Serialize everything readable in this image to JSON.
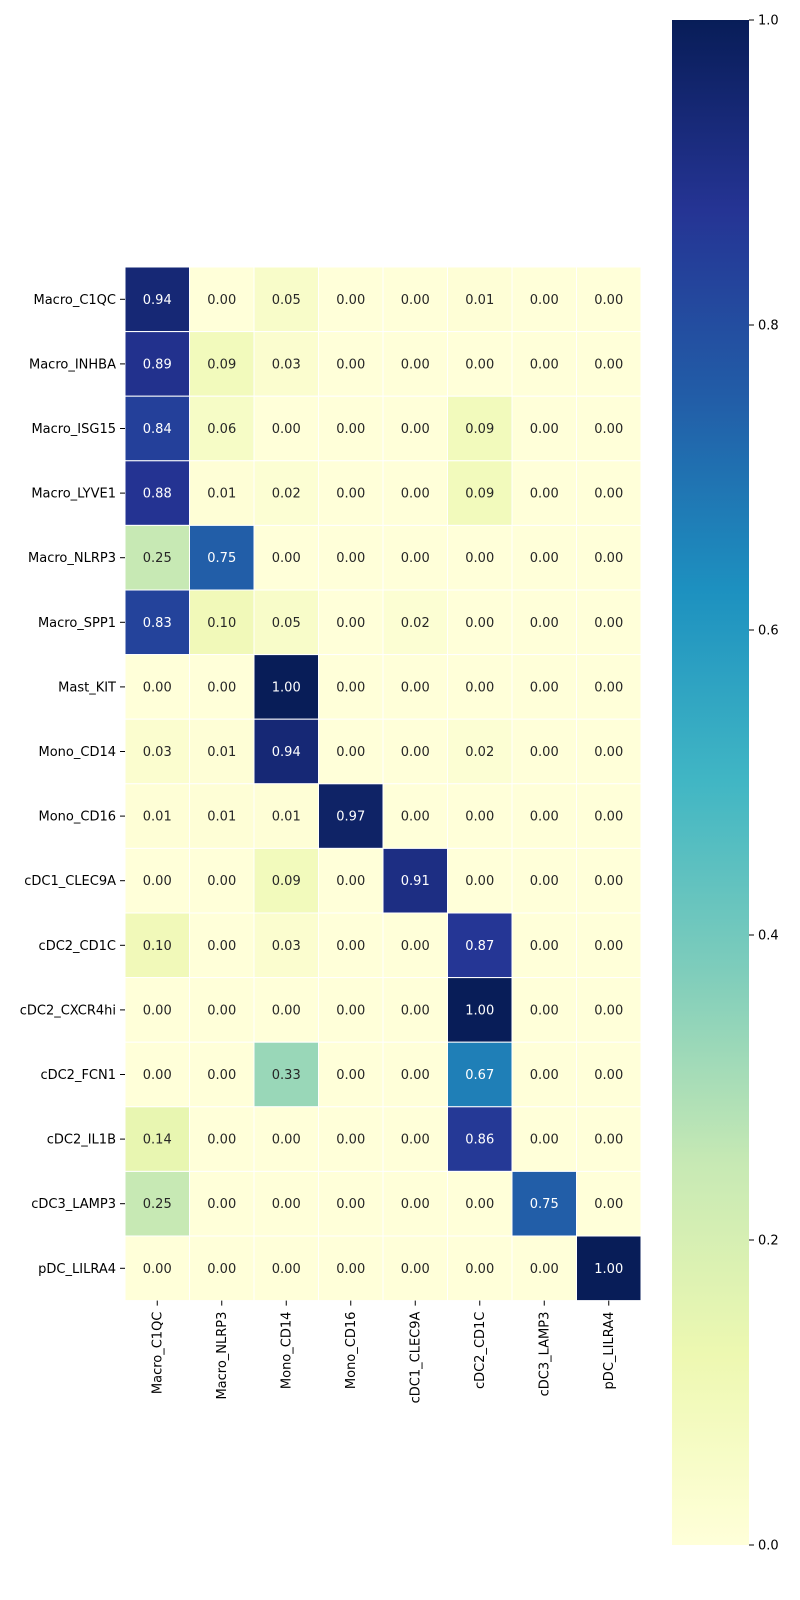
{
  "chart_data": {
    "type": "heatmap",
    "rows": [
      "Macro_C1QC",
      "Macro_INHBA",
      "Macro_ISG15",
      "Macro_LYVE1",
      "Macro_NLRP3",
      "Macro_SPP1",
      "Mast_KIT",
      "Mono_CD14",
      "Mono_CD16",
      "cDC1_CLEC9A",
      "cDC2_CD1C",
      "cDC2_CXCR4hi",
      "cDC2_FCN1",
      "cDC2_IL1B",
      "cDC3_LAMP3",
      "pDC_LILRA4"
    ],
    "columns": [
      "Macro_C1QC",
      "Macro_NLRP3",
      "Mono_CD14",
      "Mono_CD16",
      "cDC1_CLEC9A",
      "cDC2_CD1C",
      "cDC3_LAMP3",
      "pDC_LILRA4"
    ],
    "values": [
      [
        0.94,
        0.0,
        0.05,
        0.0,
        0.0,
        0.01,
        0.0,
        0.0
      ],
      [
        0.89,
        0.09,
        0.03,
        0.0,
        0.0,
        0.0,
        0.0,
        0.0
      ],
      [
        0.84,
        0.06,
        0.0,
        0.0,
        0.0,
        0.09,
        0.0,
        0.0
      ],
      [
        0.88,
        0.01,
        0.02,
        0.0,
        0.0,
        0.09,
        0.0,
        0.0
      ],
      [
        0.25,
        0.75,
        0.0,
        0.0,
        0.0,
        0.0,
        0.0,
        0.0
      ],
      [
        0.83,
        0.1,
        0.05,
        0.0,
        0.02,
        0.0,
        0.0,
        0.0
      ],
      [
        0.0,
        0.0,
        1.0,
        0.0,
        0.0,
        0.0,
        0.0,
        0.0
      ],
      [
        0.03,
        0.01,
        0.94,
        0.0,
        0.0,
        0.02,
        0.0,
        0.0
      ],
      [
        0.01,
        0.01,
        0.01,
        0.97,
        0.0,
        0.0,
        0.0,
        0.0
      ],
      [
        0.0,
        0.0,
        0.09,
        0.0,
        0.91,
        0.0,
        0.0,
        0.0
      ],
      [
        0.1,
        0.0,
        0.03,
        0.0,
        0.0,
        0.87,
        0.0,
        0.0
      ],
      [
        0.0,
        0.0,
        0.0,
        0.0,
        0.0,
        1.0,
        0.0,
        0.0
      ],
      [
        0.0,
        0.0,
        0.33,
        0.0,
        0.0,
        0.67,
        0.0,
        0.0
      ],
      [
        0.14,
        0.0,
        0.0,
        0.0,
        0.0,
        0.86,
        0.0,
        0.0
      ],
      [
        0.25,
        0.0,
        0.0,
        0.0,
        0.0,
        0.0,
        0.75,
        0.0
      ],
      [
        0.0,
        0.0,
        0.0,
        0.0,
        0.0,
        0.0,
        0.0,
        1.0
      ]
    ],
    "value_format": "0.00",
    "colormap": "YlGnBu",
    "colormap_stops": [
      "#ffffd9",
      "#edf8b1",
      "#c7e9b4",
      "#7fcdbb",
      "#41b6c4",
      "#1d91c0",
      "#225ea8",
      "#253494",
      "#081d58"
    ],
    "colorbar": {
      "range": [
        0.0,
        1.0
      ],
      "ticks": [
        "0.0",
        "0.2",
        "0.4",
        "0.6",
        "0.8",
        "1.0"
      ]
    },
    "title": "",
    "xlabel": "",
    "ylabel": ""
  }
}
